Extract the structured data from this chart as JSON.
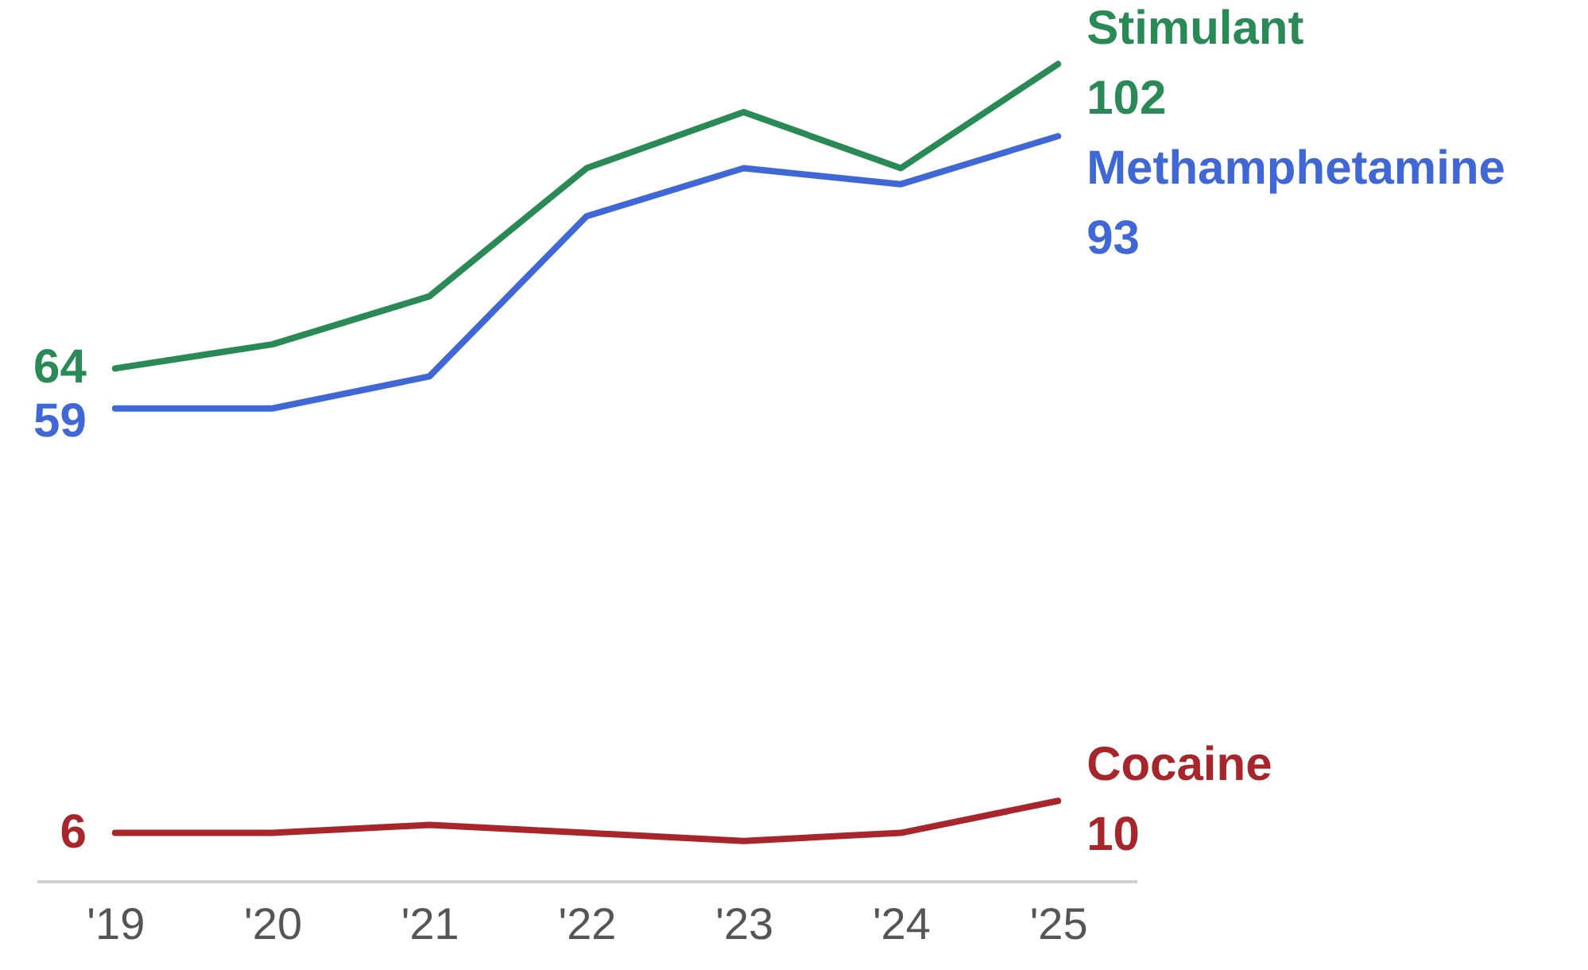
{
  "chart_data": {
    "type": "line",
    "categories": [
      "'19",
      "'20",
      "'21",
      "'22",
      "'23",
      "'24",
      "'25"
    ],
    "series": [
      {
        "name": "Stimulant",
        "color": "#2a8a55",
        "values": [
          64,
          67,
          73,
          89,
          96,
          89,
          102
        ],
        "value_labels": [
          "64",
          null,
          null,
          null,
          null,
          null,
          "102"
        ]
      },
      {
        "name": "Methamphetamine",
        "color": "#3f68d6",
        "values": [
          59,
          59,
          63,
          83,
          89,
          87,
          93
        ],
        "value_labels": [
          "59",
          null,
          null,
          null,
          null,
          null,
          "93"
        ]
      },
      {
        "name": "Cocaine",
        "color": "#a8262b",
        "values": [
          6,
          6,
          7,
          6,
          5,
          6,
          10
        ],
        "value_labels": [
          "6",
          null,
          null,
          null,
          null,
          null,
          "10"
        ]
      }
    ],
    "ylim": [
      0,
      110
    ],
    "tick_labels": "x",
    "grid": false
  }
}
